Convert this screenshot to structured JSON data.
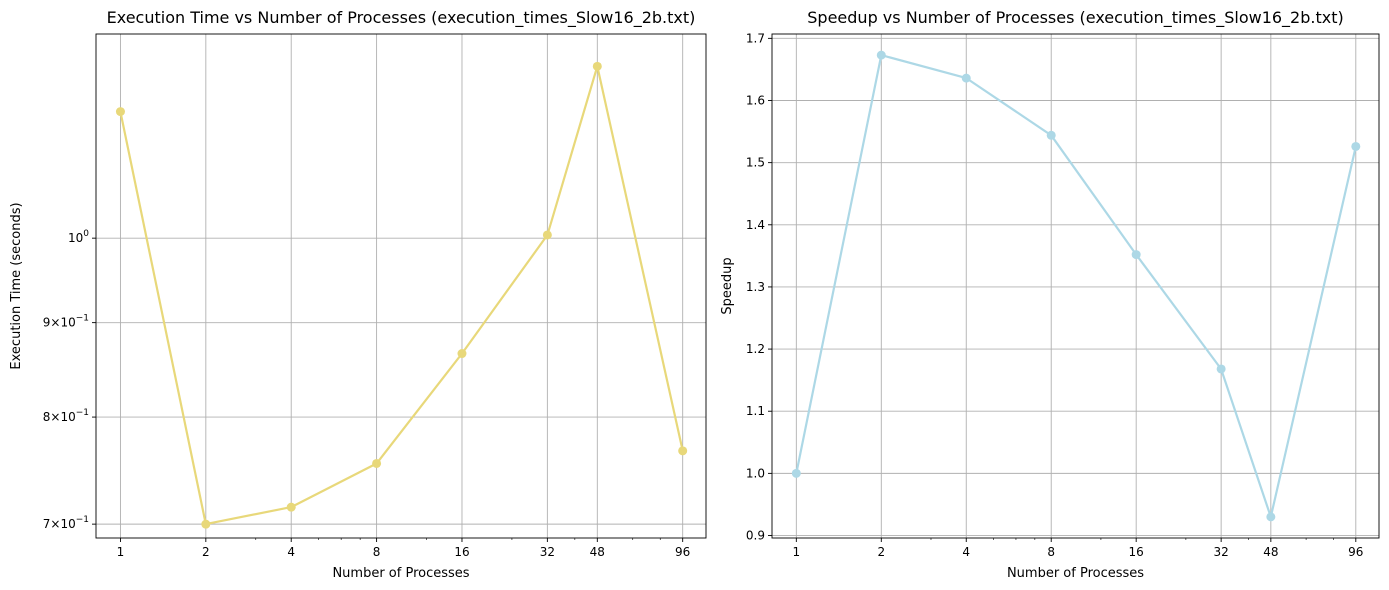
{
  "chart_data": [
    {
      "type": "line",
      "title": "Execution Time vs Number of Processes (execution_times_Slow16_2b.txt)",
      "xlabel": "Number of Processes",
      "ylabel": "Execution Time (seconds)",
      "x_scale": "log2",
      "y_scale": "log",
      "x": [
        1,
        2,
        4,
        8,
        16,
        32,
        48,
        96
      ],
      "x_tick_labels": [
        "1",
        "2",
        "4",
        "8",
        "16",
        "32",
        "48",
        "96"
      ],
      "series": [
        {
          "values": [
            1.171,
            0.7,
            0.715,
            0.755,
            0.866,
            1.004,
            1.239,
            0.767
          ],
          "color": "#e8d87a"
        }
      ],
      "y_ticks": [
        {
          "value": 1.0,
          "base": "10",
          "exp": "0",
          "coef": ""
        },
        {
          "value": 0.9,
          "base": "10",
          "exp": "−1",
          "coef": "9"
        },
        {
          "value": 0.8,
          "base": "10",
          "exp": "−1",
          "coef": "8"
        },
        {
          "value": 0.7,
          "base": "10",
          "exp": "−1",
          "coef": "7"
        }
      ],
      "xlim": [
        0.82,
        116
      ],
      "ylim": [
        0.688,
        1.29
      ],
      "grid": true
    },
    {
      "type": "line",
      "title": "Speedup vs Number of Processes (execution_times_Slow16_2b.txt)",
      "xlabel": "Number of Processes",
      "ylabel": "Speedup",
      "x_scale": "log2",
      "y_scale": "linear",
      "x": [
        1,
        2,
        4,
        8,
        16,
        32,
        48,
        96
      ],
      "x_tick_labels": [
        "1",
        "2",
        "4",
        "8",
        "16",
        "32",
        "48",
        "96"
      ],
      "series": [
        {
          "values": [
            1.0,
            1.673,
            1.636,
            1.544,
            1.352,
            1.168,
            0.93,
            1.526
          ],
          "color": "#add8e6"
        }
      ],
      "y_ticks": [
        {
          "value": 0.9,
          "label": "0.9"
        },
        {
          "value": 1.0,
          "label": "1.0"
        },
        {
          "value": 1.1,
          "label": "1.1"
        },
        {
          "value": 1.2,
          "label": "1.2"
        },
        {
          "value": 1.3,
          "label": "1.3"
        },
        {
          "value": 1.4,
          "label": "1.4"
        },
        {
          "value": 1.5,
          "label": "1.5"
        },
        {
          "value": 1.6,
          "label": "1.6"
        },
        {
          "value": 1.7,
          "label": "1.7"
        }
      ],
      "xlim": [
        0.82,
        116
      ],
      "ylim": [
        0.896,
        1.707
      ],
      "grid": true
    }
  ]
}
